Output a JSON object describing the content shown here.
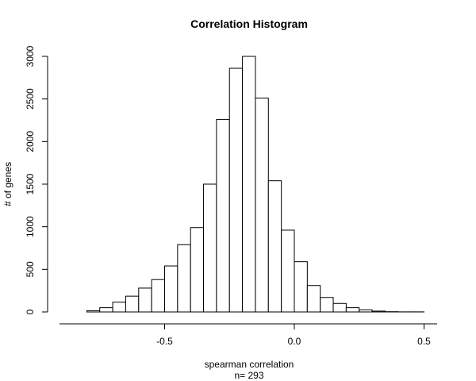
{
  "chart_data": {
    "type": "bar",
    "title": "Correlation Histogram",
    "xlabel": "spearman correlation",
    "xlabel_sub": "n= 293",
    "ylabel": "# of genes",
    "bin_width": 0.05,
    "bin_edges_start": -0.8,
    "bins": [
      {
        "x0": -0.8,
        "x1": -0.75,
        "count": 15
      },
      {
        "x0": -0.75,
        "x1": -0.7,
        "count": 50
      },
      {
        "x0": -0.7,
        "x1": -0.65,
        "count": 115
      },
      {
        "x0": -0.65,
        "x1": -0.6,
        "count": 185
      },
      {
        "x0": -0.6,
        "x1": -0.55,
        "count": 280
      },
      {
        "x0": -0.55,
        "x1": -0.5,
        "count": 380
      },
      {
        "x0": -0.5,
        "x1": -0.45,
        "count": 540
      },
      {
        "x0": -0.45,
        "x1": -0.4,
        "count": 790
      },
      {
        "x0": -0.4,
        "x1": -0.35,
        "count": 990
      },
      {
        "x0": -0.35,
        "x1": -0.3,
        "count": 1500
      },
      {
        "x0": -0.3,
        "x1": -0.25,
        "count": 2260
      },
      {
        "x0": -0.25,
        "x1": -0.2,
        "count": 2860
      },
      {
        "x0": -0.2,
        "x1": -0.15,
        "count": 3000
      },
      {
        "x0": -0.15,
        "x1": -0.1,
        "count": 2510
      },
      {
        "x0": -0.1,
        "x1": -0.05,
        "count": 1540
      },
      {
        "x0": -0.05,
        "x1": 0.0,
        "count": 960
      },
      {
        "x0": 0.0,
        "x1": 0.05,
        "count": 590
      },
      {
        "x0": 0.05,
        "x1": 0.1,
        "count": 310
      },
      {
        "x0": 0.1,
        "x1": 0.15,
        "count": 170
      },
      {
        "x0": 0.15,
        "x1": 0.2,
        "count": 100
      },
      {
        "x0": 0.2,
        "x1": 0.25,
        "count": 50
      },
      {
        "x0": 0.25,
        "x1": 0.3,
        "count": 25
      },
      {
        "x0": 0.3,
        "x1": 0.35,
        "count": 10
      },
      {
        "x0": 0.35,
        "x1": 0.4,
        "count": 3
      },
      {
        "x0": 0.4,
        "x1": 0.45,
        "count": 1
      },
      {
        "x0": 0.45,
        "x1": 0.5,
        "count": 1
      },
      {
        "x0": 0.5,
        "x1": 0.55,
        "count": 0
      }
    ],
    "xlim": [
      -0.9,
      0.55
    ],
    "ylim": [
      0,
      3000
    ],
    "x_ticks": [
      -0.5,
      0.0,
      0.5
    ],
    "x_tick_labels": [
      "-0.5",
      "0.0",
      "0.5"
    ],
    "y_ticks": [
      0,
      500,
      1000,
      1500,
      2000,
      2500,
      3000
    ],
    "y_tick_labels": [
      "0",
      "500",
      "1000",
      "1500",
      "2000",
      "2500",
      "3000"
    ],
    "grid": false,
    "legend": "none",
    "colors": {
      "bar_fill": "#ffffff",
      "bar_stroke": "#000000",
      "axis": "#000000"
    }
  }
}
